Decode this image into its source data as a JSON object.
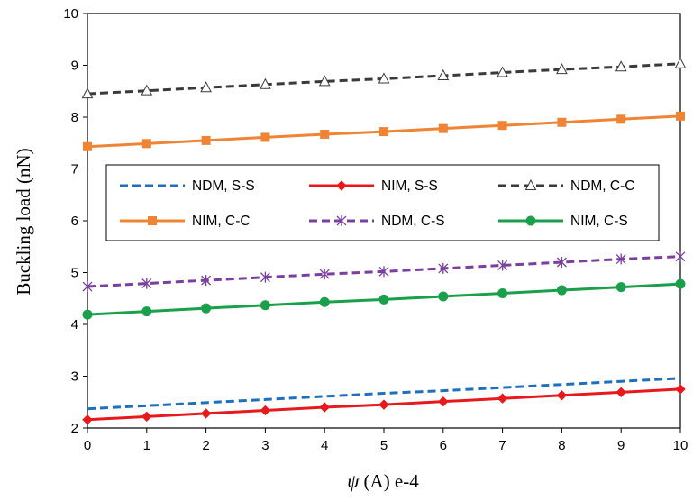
{
  "chart_data": {
    "type": "line",
    "title": "",
    "xlabel_symbol": "ψ",
    "xlabel_rest": " (A)  e-4",
    "ylabel": "Buckling load (nN)",
    "xlim": [
      0,
      10
    ],
    "ylim": [
      2,
      10
    ],
    "x_ticks": [
      "0",
      "1",
      "2",
      "3",
      "4",
      "5",
      "6",
      "7",
      "8",
      "9",
      "10"
    ],
    "y_ticks": [
      "2",
      "3",
      "4",
      "5",
      "6",
      "7",
      "8",
      "9",
      "10"
    ],
    "grid": false,
    "legend_placement": "center, boxed, 3 columns",
    "x": [
      0,
      1,
      2,
      3,
      4,
      5,
      6,
      7,
      8,
      9,
      10
    ],
    "series": [
      {
        "name": "NDM, S-S",
        "color": "#1f6fbf",
        "dash": "dashed",
        "marker": "none",
        "values": [
          2.37,
          2.43,
          2.49,
          2.55,
          2.61,
          2.67,
          2.72,
          2.78,
          2.84,
          2.9,
          2.96
        ]
      },
      {
        "name": "NIM, S-S",
        "color": "#e8191c",
        "dash": "solid",
        "marker": "diamond",
        "values": [
          2.16,
          2.22,
          2.28,
          2.34,
          2.4,
          2.45,
          2.51,
          2.57,
          2.63,
          2.69,
          2.75
        ]
      },
      {
        "name": "NDM, C-C",
        "color": "#3a3a3a",
        "dash": "dashed",
        "marker": "triangle-open",
        "values": [
          8.45,
          8.51,
          8.57,
          8.63,
          8.69,
          8.74,
          8.8,
          8.86,
          8.92,
          8.97,
          9.03
        ]
      },
      {
        "name": "NIM, C-C",
        "color": "#ee8434",
        "dash": "solid",
        "marker": "square",
        "values": [
          7.43,
          7.49,
          7.55,
          7.61,
          7.67,
          7.72,
          7.78,
          7.84,
          7.9,
          7.96,
          8.02
        ]
      },
      {
        "name": "NDM, C-S",
        "color": "#7a3fa0",
        "dash": "dashed",
        "marker": "asterisk",
        "values": [
          4.73,
          4.79,
          4.85,
          4.91,
          4.97,
          5.02,
          5.08,
          5.14,
          5.2,
          5.26,
          5.31
        ]
      },
      {
        "name": "NIM, C-S",
        "color": "#1aa04a",
        "dash": "solid",
        "marker": "circle",
        "values": [
          4.19,
          4.25,
          4.31,
          4.37,
          4.43,
          4.48,
          4.54,
          4.6,
          4.66,
          4.72,
          4.78
        ]
      }
    ]
  }
}
